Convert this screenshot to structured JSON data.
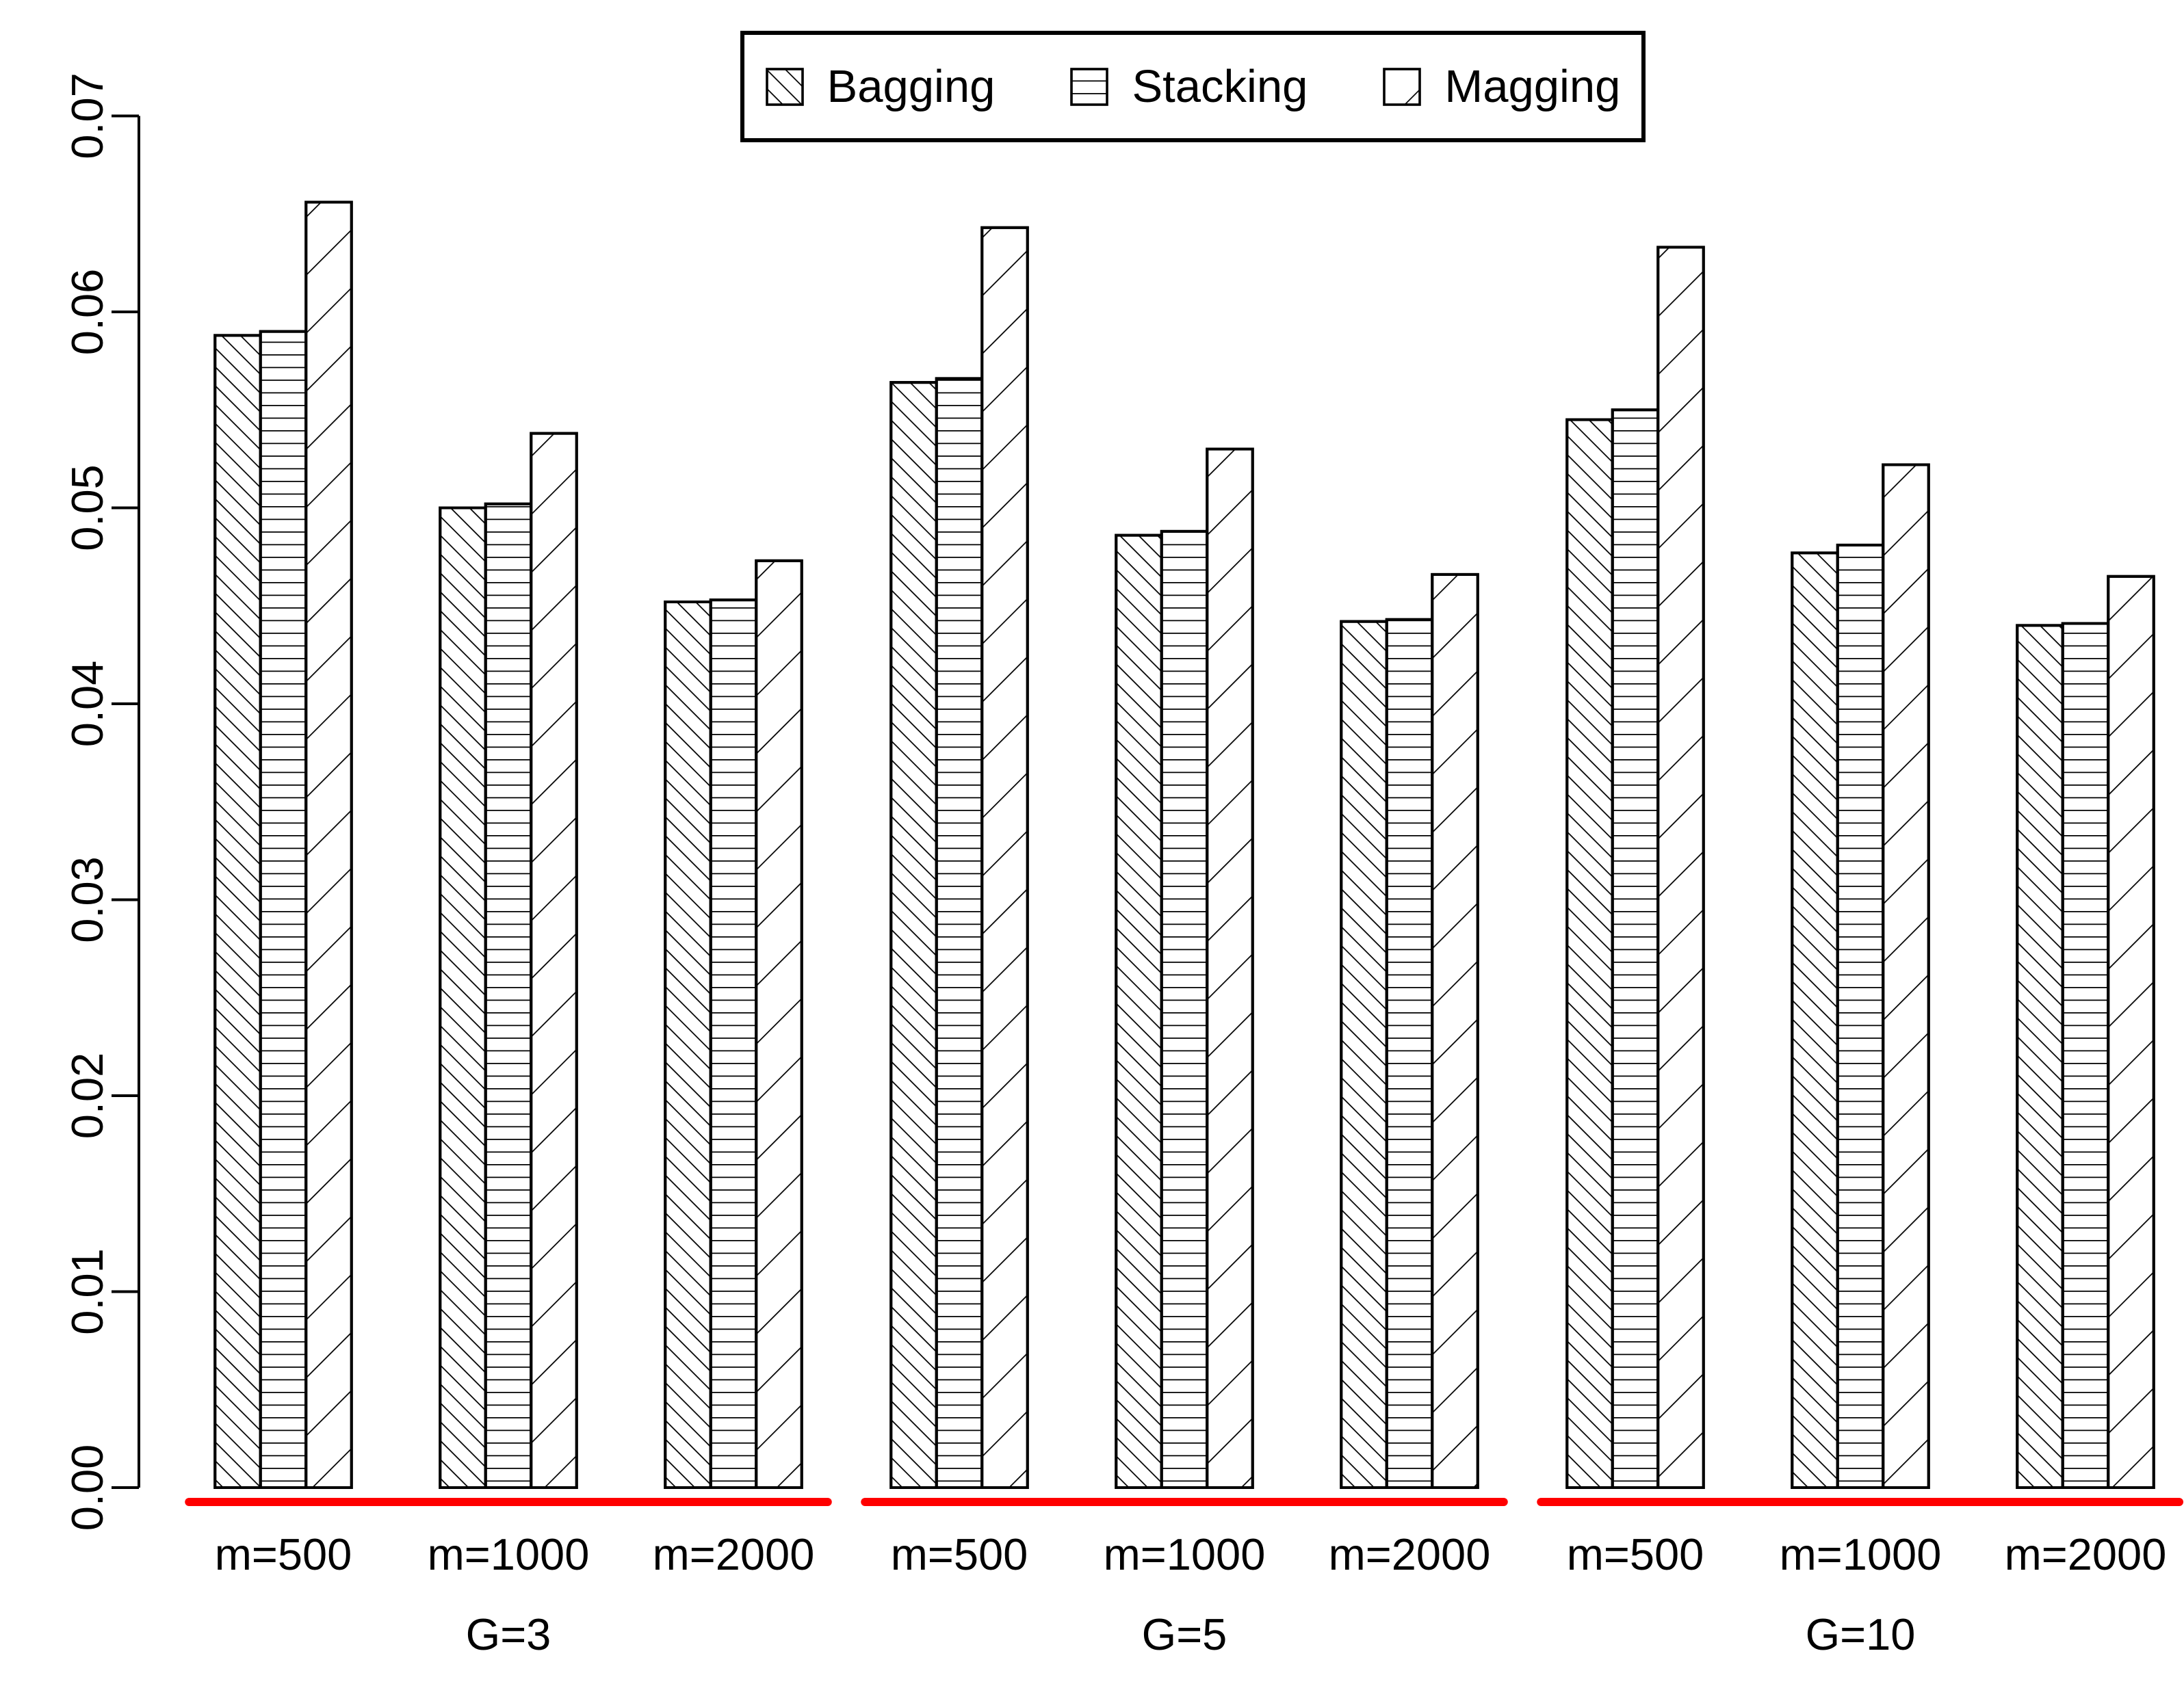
{
  "chart_data": {
    "type": "bar",
    "title": "",
    "xlabel": "",
    "ylabel": "",
    "ylim": [
      0,
      0.07
    ],
    "grid": false,
    "legend_position": "top-center",
    "axis_color": "#000000",
    "bar_fill": "#ffffff",
    "bar_outline": "#000000",
    "y_ticks": [
      "0.00",
      "0.01",
      "0.02",
      "0.03",
      "0.04",
      "0.05",
      "0.06",
      "0.07"
    ],
    "group_labels": [
      "G=3",
      "G=5",
      "G=10"
    ],
    "categories": [
      "m=500",
      "m=1000",
      "m=2000"
    ],
    "series": [
      {
        "name": "Bagging",
        "hatch": "backslash",
        "values": [
          [
            0.0588,
            0.05,
            0.0452
          ],
          [
            0.0564,
            0.0486,
            0.0442
          ],
          [
            0.0545,
            0.0477,
            0.044
          ]
        ]
      },
      {
        "name": "Stacking",
        "hatch": "horizontal",
        "values": [
          [
            0.059,
            0.0502,
            0.0453
          ],
          [
            0.0566,
            0.0488,
            0.0443
          ],
          [
            0.055,
            0.0481,
            0.0441
          ]
        ]
      },
      {
        "name": "Magging",
        "hatch": "slash",
        "values": [
          [
            0.0656,
            0.0538,
            0.0473
          ],
          [
            0.0643,
            0.053,
            0.0466
          ],
          [
            0.0633,
            0.0522,
            0.0465
          ]
        ]
      }
    ],
    "group_underline": {
      "color": "#ff0000",
      "y_value": -0.0008
    }
  }
}
